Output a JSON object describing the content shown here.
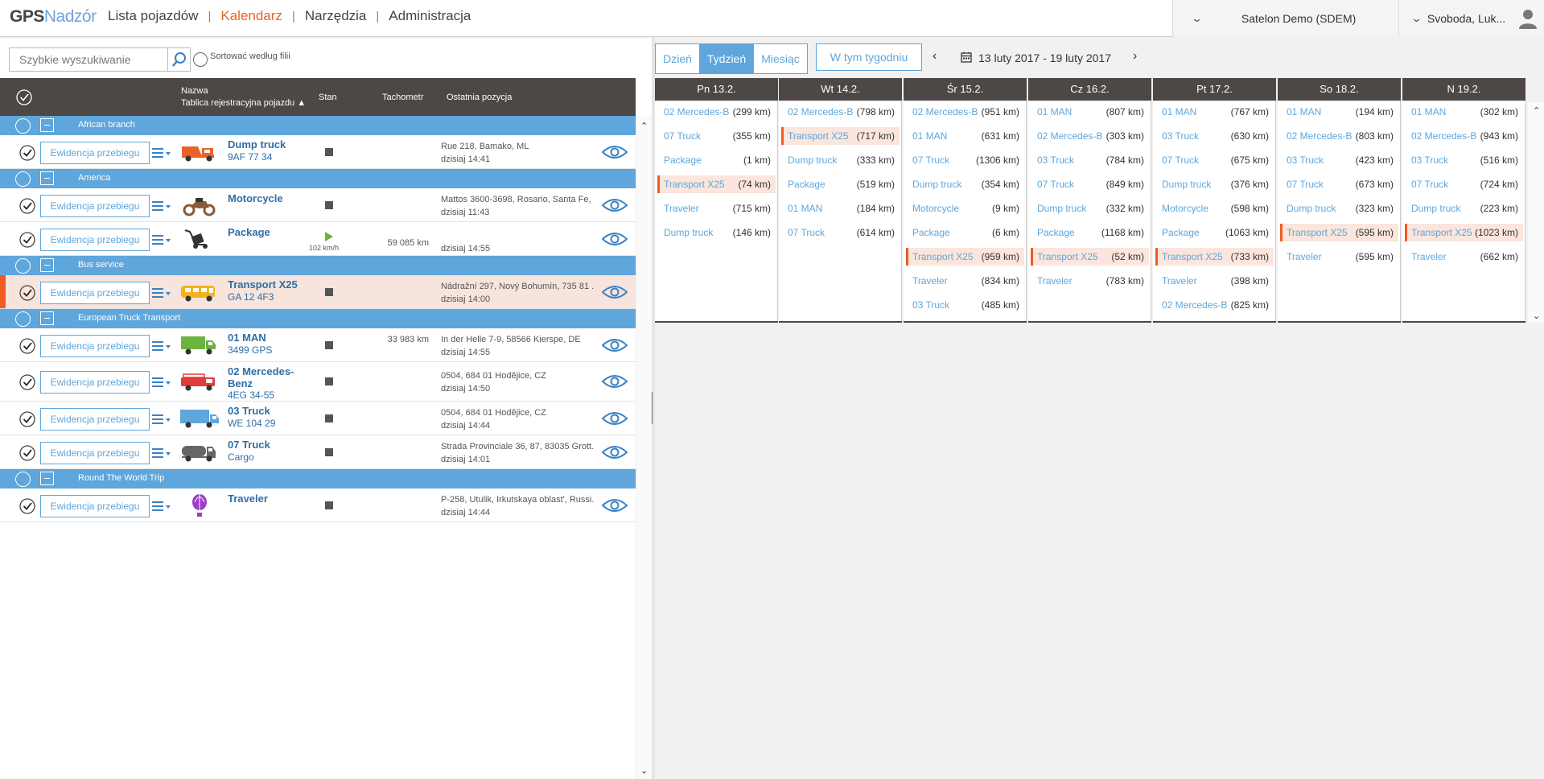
{
  "header": {
    "logo_gps": "GPS",
    "logo_nadzor": "Nadzór",
    "nav": [
      "Lista pojazdów",
      "Kalendarz",
      "Narzędzia",
      "Administracja"
    ],
    "active_nav": "Kalendarz",
    "company": "Satelon Demo (SDEM)",
    "user": "Svoboda, Luk..."
  },
  "search": {
    "placeholder": "Szybkie wyszukiwanie",
    "sort_label": "Sortować według filii"
  },
  "table": {
    "col_name": "Nazwa",
    "col_plate": "Tablica rejestracyjna pojazdu ▲",
    "col_stan": "Stan",
    "col_tacho": "Tachometr",
    "col_pos": "Ostatnia pozycja",
    "ewi_label": "Ewidencja przebiegu"
  },
  "groups": [
    {
      "label": "African branch",
      "vehicles": [
        {
          "name": "Dump truck",
          "plate": "9AF 77 34",
          "icon": "dump-truck-icon",
          "color": "#e8632a",
          "speed": "",
          "tacho": "",
          "addr": "Rue 218, Bamako, ML",
          "time": "dzisiaj 14:41",
          "moving": false,
          "selected": false
        }
      ]
    },
    {
      "label": "America",
      "vehicles": [
        {
          "name": "Motorcycle",
          "plate": "",
          "icon": "motorcycle-icon",
          "color": "#8a5a3a",
          "speed": "",
          "tacho": "",
          "addr": "Mattos 3600-3698, Rosario, Santa Fe, ...",
          "time": "dzisiaj 11:43",
          "moving": false,
          "selected": false
        },
        {
          "name": "Package",
          "plate": "",
          "icon": "package-icon",
          "color": "#333333",
          "speed": "102 km/h",
          "tacho": "59 085 km",
          "addr": "",
          "time": "dzisiaj 14:55",
          "moving": true,
          "selected": false
        }
      ]
    },
    {
      "label": "Bus service",
      "vehicles": [
        {
          "name": "Transport X25",
          "plate": "GA 12 4F3",
          "icon": "bus-icon",
          "color": "#f2b41e",
          "speed": "",
          "tacho": "",
          "addr": "Nádražní 297, Nový Bohumín, 735 81 ...",
          "time": "dzisiaj 14:00",
          "moving": false,
          "selected": true
        }
      ]
    },
    {
      "label": "European Truck Transport",
      "vehicles": [
        {
          "name": "01 MAN",
          "plate": "3499 GPS",
          "icon": "truck-icon",
          "color": "#6cb33f",
          "speed": "",
          "tacho": "33 983 km",
          "addr": "In der Helle 7-9, 58566 Kierspe, DE",
          "time": "dzisiaj 14:55",
          "moving": false,
          "selected": false
        },
        {
          "name": "02 Mercedes-Benz",
          "plate": "4EG 34-55",
          "icon": "fire-truck-icon",
          "color": "#e23b3b",
          "speed": "",
          "tacho": "",
          "addr": "0504, 684 01 Hodějice, CZ",
          "time": "dzisiaj 14:50",
          "moving": false,
          "selected": false
        },
        {
          "name": "03 Truck",
          "plate": "WE 104 29",
          "icon": "semi-truck-icon",
          "color": "#5ea6db",
          "speed": "",
          "tacho": "",
          "addr": "0504, 684 01 Hodějice, CZ",
          "time": "dzisiaj 14:44",
          "moving": false,
          "selected": false
        },
        {
          "name": "07 Truck",
          "plate": "Cargo",
          "icon": "tanker-truck-icon",
          "color": "#666666",
          "speed": "",
          "tacho": "",
          "addr": "Strada Provinciale 36, 87, 83035 Grott...",
          "time": "dzisiaj 14:01",
          "moving": false,
          "selected": false
        }
      ]
    },
    {
      "label": "Round The World Trip",
      "vehicles": [
        {
          "name": "Traveler",
          "plate": "",
          "icon": "balloon-icon",
          "color": "#9b3fc7",
          "speed": "",
          "tacho": "",
          "addr": "P-258, Utulik, Irkutskaya oblast', Russi...",
          "time": "dzisiaj 14:44",
          "moving": false,
          "selected": false
        }
      ]
    }
  ],
  "calendar": {
    "views": [
      "Dzień",
      "Tydzień",
      "Miesiąc"
    ],
    "active_view": "Tydzień",
    "this_week": "W tym tygodniu",
    "range": "13 luty 2017 - 19 luty 2017",
    "days": [
      {
        "label": "Pn 13.2.",
        "entries": [
          [
            "02 Mercedes-B",
            "(299 km)",
            false
          ],
          [
            "07 Truck",
            "(355 km)",
            false
          ],
          [
            "Package",
            "(1 km)",
            false
          ],
          [
            "Transport X25",
            "(74 km)",
            true
          ],
          [
            "Traveler",
            "(715 km)",
            false
          ],
          [
            "Dump truck",
            "(146 km)",
            false
          ]
        ]
      },
      {
        "label": "Wt 14.2.",
        "entries": [
          [
            "02 Mercedes-B",
            "(798 km)",
            false
          ],
          [
            "Transport X25",
            "(717 km)",
            true
          ],
          [
            "Dump truck",
            "(333 km)",
            false
          ],
          [
            "Package",
            "(519 km)",
            false
          ],
          [
            "01 MAN",
            "(184 km)",
            false
          ],
          [
            "07 Truck",
            "(614 km)",
            false
          ]
        ]
      },
      {
        "label": "Śr 15.2.",
        "entries": [
          [
            "02 Mercedes-B",
            "(951 km)",
            false
          ],
          [
            "01 MAN",
            "(631 km)",
            false
          ],
          [
            "07 Truck",
            "(1306 km)",
            false
          ],
          [
            "Dump truck",
            "(354 km)",
            false
          ],
          [
            "Motorcycle",
            "(9 km)",
            false
          ],
          [
            "Package",
            "(6 km)",
            false
          ],
          [
            "Transport X25",
            "(959 km)",
            true
          ],
          [
            "Traveler",
            "(834 km)",
            false
          ],
          [
            "03 Truck",
            "(485 km)",
            false
          ]
        ]
      },
      {
        "label": "Cz 16.2.",
        "entries": [
          [
            "01 MAN",
            "(807 km)",
            false
          ],
          [
            "02 Mercedes-B",
            "(303 km)",
            false
          ],
          [
            "03 Truck",
            "(784 km)",
            false
          ],
          [
            "07 Truck",
            "(849 km)",
            false
          ],
          [
            "Dump truck",
            "(332 km)",
            false
          ],
          [
            "Package",
            "(1168 km)",
            false
          ],
          [
            "Transport X25",
            "(52 km)",
            true
          ],
          [
            "Traveler",
            "(783 km)",
            false
          ]
        ]
      },
      {
        "label": "Pt 17.2.",
        "entries": [
          [
            "01 MAN",
            "(767 km)",
            false
          ],
          [
            "03 Truck",
            "(630 km)",
            false
          ],
          [
            "07 Truck",
            "(675 km)",
            false
          ],
          [
            "Dump truck",
            "(376 km)",
            false
          ],
          [
            "Motorcycle",
            "(598 km)",
            false
          ],
          [
            "Package",
            "(1063 km)",
            false
          ],
          [
            "Transport X25",
            "(733 km)",
            true
          ],
          [
            "Traveler",
            "(398 km)",
            false
          ],
          [
            "02 Mercedes-B",
            "(825 km)",
            false
          ]
        ]
      },
      {
        "label": "So 18.2.",
        "entries": [
          [
            "01 MAN",
            "(194 km)",
            false
          ],
          [
            "02 Mercedes-B",
            "(803 km)",
            false
          ],
          [
            "03 Truck",
            "(423 km)",
            false
          ],
          [
            "07 Truck",
            "(673 km)",
            false
          ],
          [
            "Dump truck",
            "(323 km)",
            false
          ],
          [
            "Transport X25",
            "(595 km)",
            true
          ],
          [
            "Traveler",
            "(595 km)",
            false
          ]
        ]
      },
      {
        "label": "N 19.2.",
        "entries": [
          [
            "01 MAN",
            "(302 km)",
            false
          ],
          [
            "02 Mercedes-B",
            "(943 km)",
            false
          ],
          [
            "03 Truck",
            "(516 km)",
            false
          ],
          [
            "07 Truck",
            "(724 km)",
            false
          ],
          [
            "Dump truck",
            "(223 km)",
            false
          ],
          [
            "Transport X25",
            "(1023 km)",
            true
          ],
          [
            "Traveler",
            "(662 km)",
            false
          ]
        ]
      }
    ]
  }
}
